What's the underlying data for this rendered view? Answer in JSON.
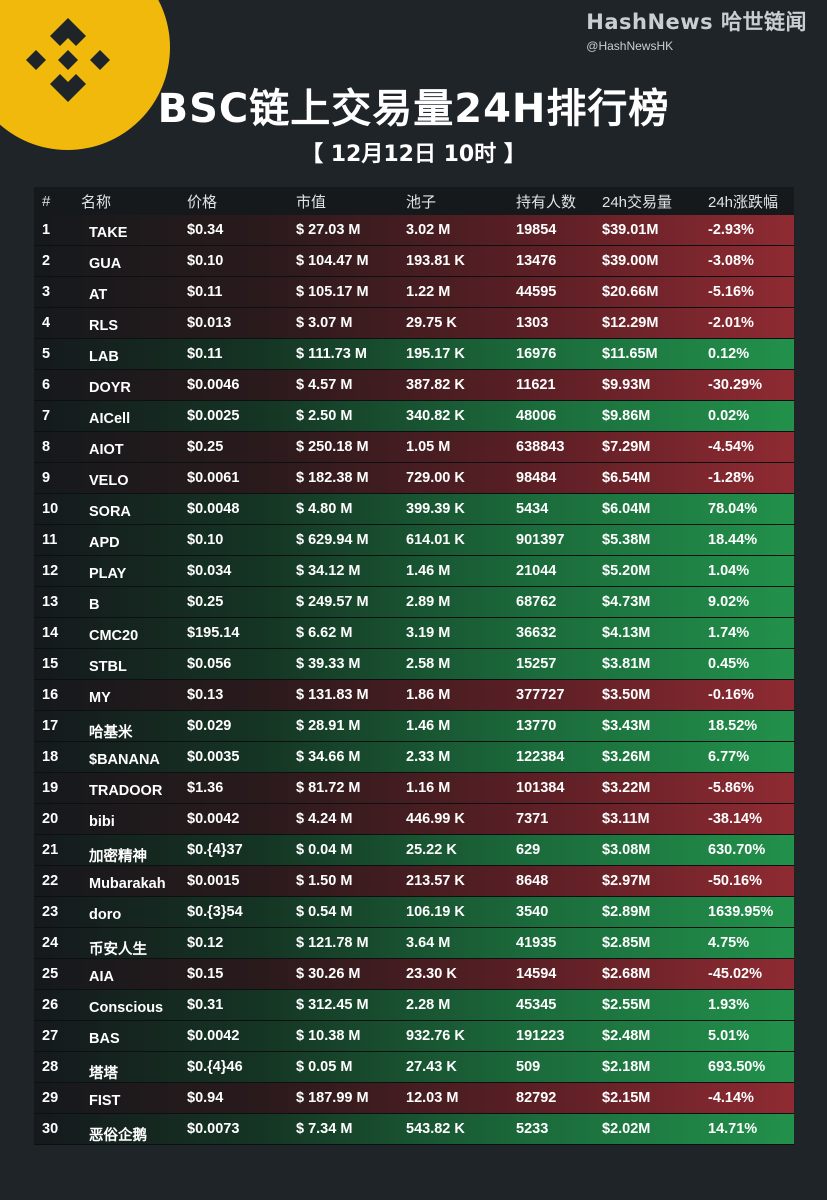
{
  "brand": {
    "name": "HashNews 哈世链闻",
    "handle": "@HashNewsHK"
  },
  "title": "BSC链上交易量24H排行榜",
  "subtitle": "【 12月12日  10时 】",
  "colors": {
    "logo": "#f0b90b",
    "up": "#22914b",
    "down": "#8f2a32",
    "background": "#1f2428"
  },
  "logo_icon": "binance-logo-icon",
  "table": {
    "columns": [
      "#",
      "名称",
      "价格",
      "市值",
      "池子",
      "持有人数",
      "24h交易量",
      "24h涨跌幅"
    ],
    "rows": [
      {
        "rank": "1",
        "name": "TAKE",
        "price": "$0.34",
        "mcap": "$ 27.03 M",
        "pool": "3.02 M",
        "holders": "19854",
        "volume": "$39.01M",
        "change": "-2.93%",
        "trend": "down"
      },
      {
        "rank": "2",
        "name": "GUA",
        "price": "$0.10",
        "mcap": "$ 104.47 M",
        "pool": "193.81 K",
        "holders": "13476",
        "volume": "$39.00M",
        "change": "-3.08%",
        "trend": "down"
      },
      {
        "rank": "3",
        "name": "AT",
        "price": "$0.11",
        "mcap": "$ 105.17 M",
        "pool": "1.22 M",
        "holders": "44595",
        "volume": "$20.66M",
        "change": "-5.16%",
        "trend": "down"
      },
      {
        "rank": "4",
        "name": "RLS",
        "price": "$0.013",
        "mcap": "$ 3.07 M",
        "pool": "29.75 K",
        "holders": "1303",
        "volume": "$12.29M",
        "change": "-2.01%",
        "trend": "down"
      },
      {
        "rank": "5",
        "name": "LAB",
        "price": "$0.11",
        "mcap": "$ 111.73 M",
        "pool": "195.17 K",
        "holders": "16976",
        "volume": "$11.65M",
        "change": "0.12%",
        "trend": "up"
      },
      {
        "rank": "6",
        "name": "DOYR",
        "price": "$0.0046",
        "mcap": "$ 4.57 M",
        "pool": "387.82 K",
        "holders": "11621",
        "volume": "$9.93M",
        "change": "-30.29%",
        "trend": "down"
      },
      {
        "rank": "7",
        "name": "AICell",
        "price": "$0.0025",
        "mcap": "$ 2.50 M",
        "pool": "340.82 K",
        "holders": "48006",
        "volume": "$9.86M",
        "change": "0.02%",
        "trend": "up"
      },
      {
        "rank": "8",
        "name": "AIOT",
        "price": "$0.25",
        "mcap": "$ 250.18 M",
        "pool": "1.05 M",
        "holders": "638843",
        "volume": "$7.29M",
        "change": "-4.54%",
        "trend": "down"
      },
      {
        "rank": "9",
        "name": "VELO",
        "price": "$0.0061",
        "mcap": "$ 182.38 M",
        "pool": "729.00 K",
        "holders": "98484",
        "volume": "$6.54M",
        "change": "-1.28%",
        "trend": "down"
      },
      {
        "rank": "10",
        "name": "SORA",
        "price": "$0.0048",
        "mcap": "$ 4.80 M",
        "pool": "399.39 K",
        "holders": "5434",
        "volume": "$6.04M",
        "change": "78.04%",
        "trend": "up"
      },
      {
        "rank": "11",
        "name": "APD",
        "price": "$0.10",
        "mcap": "$ 629.94 M",
        "pool": "614.01 K",
        "holders": "901397",
        "volume": "$5.38M",
        "change": "18.44%",
        "trend": "up"
      },
      {
        "rank": "12",
        "name": "PLAY",
        "price": "$0.034",
        "mcap": "$ 34.12 M",
        "pool": "1.46 M",
        "holders": "21044",
        "volume": "$5.20M",
        "change": "1.04%",
        "trend": "up"
      },
      {
        "rank": "13",
        "name": "B",
        "price": "$0.25",
        "mcap": "$ 249.57 M",
        "pool": "2.89 M",
        "holders": "68762",
        "volume": "$4.73M",
        "change": "9.02%",
        "trend": "up"
      },
      {
        "rank": "14",
        "name": "CMC20",
        "price": "$195.14",
        "mcap": "$ 6.62 M",
        "pool": "3.19 M",
        "holders": "36632",
        "volume": "$4.13M",
        "change": "1.74%",
        "trend": "up"
      },
      {
        "rank": "15",
        "name": "STBL",
        "price": "$0.056",
        "mcap": "$ 39.33 M",
        "pool": "2.58 M",
        "holders": "15257",
        "volume": "$3.81M",
        "change": "0.45%",
        "trend": "up"
      },
      {
        "rank": "16",
        "name": "MY",
        "price": "$0.13",
        "mcap": "$ 131.83 M",
        "pool": "1.86 M",
        "holders": "377727",
        "volume": "$3.50M",
        "change": "-0.16%",
        "trend": "down"
      },
      {
        "rank": "17",
        "name": "哈基米",
        "price": "$0.029",
        "mcap": "$ 28.91 M",
        "pool": "1.46 M",
        "holders": "13770",
        "volume": "$3.43M",
        "change": "18.52%",
        "trend": "up"
      },
      {
        "rank": "18",
        "name": "$BANANA",
        "price": "$0.0035",
        "mcap": "$ 34.66 M",
        "pool": "2.33 M",
        "holders": "122384",
        "volume": "$3.26M",
        "change": "6.77%",
        "trend": "up"
      },
      {
        "rank": "19",
        "name": "TRADOOR",
        "price": "$1.36",
        "mcap": "$ 81.72 M",
        "pool": "1.16 M",
        "holders": "101384",
        "volume": "$3.22M",
        "change": "-5.86%",
        "trend": "down"
      },
      {
        "rank": "20",
        "name": "bibi",
        "price": "$0.0042",
        "mcap": "$ 4.24 M",
        "pool": "446.99 K",
        "holders": "7371",
        "volume": "$3.11M",
        "change": "-38.14%",
        "trend": "down"
      },
      {
        "rank": "21",
        "name": "加密精神",
        "price": "$0.{4}37",
        "mcap": "$ 0.04 M",
        "pool": "25.22 K",
        "holders": "629",
        "volume": "$3.08M",
        "change": "630.70%",
        "trend": "up"
      },
      {
        "rank": "22",
        "name": "Mubarakah",
        "price": "$0.0015",
        "mcap": "$ 1.50 M",
        "pool": "213.57 K",
        "holders": "8648",
        "volume": "$2.97M",
        "change": "-50.16%",
        "trend": "down"
      },
      {
        "rank": "23",
        "name": "doro",
        "price": "$0.{3}54",
        "mcap": "$ 0.54 M",
        "pool": "106.19 K",
        "holders": "3540",
        "volume": "$2.89M",
        "change": "1639.95%",
        "trend": "up"
      },
      {
        "rank": "24",
        "name": "币安人生",
        "price": "$0.12",
        "mcap": "$ 121.78 M",
        "pool": "3.64 M",
        "holders": "41935",
        "volume": "$2.85M",
        "change": "4.75%",
        "trend": "up"
      },
      {
        "rank": "25",
        "name": "AIA",
        "price": "$0.15",
        "mcap": "$ 30.26 M",
        "pool": "23.30 K",
        "holders": "14594",
        "volume": "$2.68M",
        "change": "-45.02%",
        "trend": "down"
      },
      {
        "rank": "26",
        "name": "Conscious",
        "price": "$0.31",
        "mcap": "$ 312.45 M",
        "pool": "2.28 M",
        "holders": "45345",
        "volume": "$2.55M",
        "change": "1.93%",
        "trend": "up"
      },
      {
        "rank": "27",
        "name": "BAS",
        "price": "$0.0042",
        "mcap": "$ 10.38 M",
        "pool": "932.76 K",
        "holders": "191223",
        "volume": "$2.48M",
        "change": "5.01%",
        "trend": "up"
      },
      {
        "rank": "28",
        "name": "塔塔",
        "price": "$0.{4}46",
        "mcap": "$ 0.05 M",
        "pool": "27.43 K",
        "holders": "509",
        "volume": "$2.18M",
        "change": "693.50%",
        "trend": "up"
      },
      {
        "rank": "29",
        "name": "FIST",
        "price": "$0.94",
        "mcap": "$ 187.99 M",
        "pool": "12.03 M",
        "holders": "82792",
        "volume": "$2.15M",
        "change": "-4.14%",
        "trend": "down"
      },
      {
        "rank": "30",
        "name": "恶俗企鹅",
        "price": "$0.0073",
        "mcap": "$ 7.34 M",
        "pool": "543.82 K",
        "holders": "5233",
        "volume": "$2.02M",
        "change": "14.71%",
        "trend": "up"
      }
    ]
  }
}
